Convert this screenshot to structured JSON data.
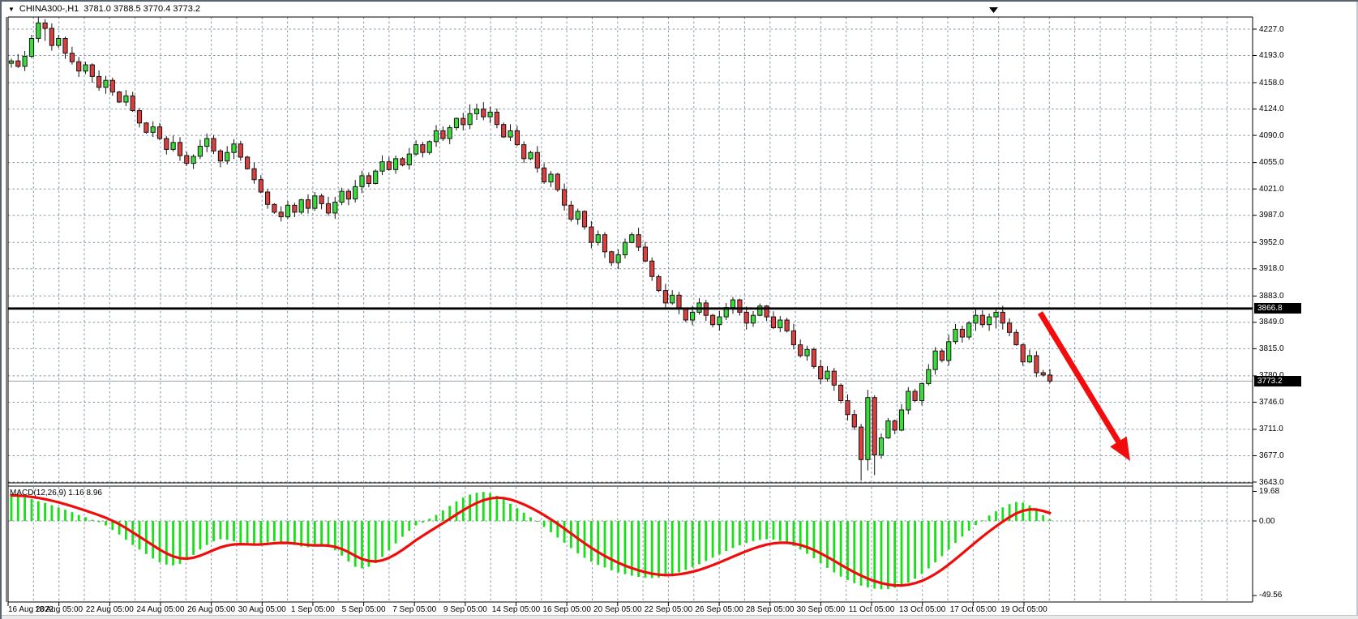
{
  "header": {
    "symbol_period": "CHINA300-,H1",
    "ohlc_readout": "3781.0 3788.5 3770.4 3773.2",
    "dropdown_glyph": "▼"
  },
  "colors": {
    "bull_fill": "#3bdb3b",
    "bear_fill": "#d94040",
    "candle_outline": "#141414",
    "grid": "#8294a8",
    "macd_hist": "#17e017",
    "macd_signal": "#f10c0c",
    "arrow": "#f20c0c",
    "tag_bg": "#000000",
    "tag_text": "#ffffff",
    "current_price_line": "#9aa0a6",
    "hline": "#000000"
  },
  "chart_data": {
    "type": "candlestick",
    "title": "CHINA300- H1 chart with MACD(12,26,9) and bearish arrow annotation",
    "symbol": "CHINA300-",
    "timeframe": "H1",
    "last_bar_ohlc": {
      "open": 3781.0,
      "high": 3788.5,
      "low": 3770.4,
      "close": 3773.2
    },
    "price_axis": {
      "min": 3643.0,
      "max": 4227.0,
      "tick_values": [
        4227.0,
        4193.0,
        4158.0,
        4124.0,
        4090.0,
        4055.0,
        4021.0,
        3987.0,
        3952.0,
        3918.0,
        3883.0,
        3849.0,
        3815.0,
        3780.0,
        3746.0,
        3711.0,
        3677.0,
        3643.0
      ],
      "tick_labels": [
        "4227.0",
        "4193.0",
        "4158.0",
        "4124.0",
        "4090.0",
        "4055.0",
        "4021.0",
        "3987.0",
        "3952.0",
        "3918.0",
        "3883.0",
        "3849.0",
        "3815.0",
        "3780.0",
        "3746.0",
        "3711.0",
        "3677.0",
        "3643.0"
      ]
    },
    "time_axis": {
      "labels": [
        "16 Aug 2022",
        "18 Aug 05:00",
        "22 Aug 05:00",
        "24 Aug 05:00",
        "26 Aug 05:00",
        "30 Aug 05:00",
        "1 Sep 05:00",
        "5 Sep 05:00",
        "7 Sep 05:00",
        "9 Sep 05:00",
        "14 Sep 05:00",
        "16 Sep 05:00",
        "20 Sep 05:00",
        "22 Sep 05:00",
        "26 Sep 05:00",
        "28 Sep 05:00",
        "30 Sep 05:00",
        "11 Oct 05:00",
        "13 Oct 05:00",
        "17 Oct 05:00",
        "19 Oct 05:00"
      ]
    },
    "grid": true,
    "legend_position": "none",
    "candles": {
      "open_first": 4183,
      "closes": [
        4186,
        4179,
        4192,
        4215,
        4235,
        4228,
        4206,
        4215,
        4196,
        4185,
        4173,
        4181,
        4166,
        4152,
        4161,
        4146,
        4133,
        4141,
        4122,
        4106,
        4094,
        4101,
        4086,
        4072,
        4081,
        4064,
        4054,
        4063,
        4076,
        4086,
        4070,
        4057,
        4068,
        4079,
        4062,
        4047,
        4033,
        4017,
        4001,
        3991,
        3985,
        4000,
        3991,
        4007,
        3996,
        4012,
        4002,
        3990,
        4004,
        4018,
        4008,
        4024,
        4038,
        4028,
        4044,
        4056,
        4046,
        4060,
        4052,
        4066,
        4078,
        4068,
        4082,
        4096,
        4086,
        4100,
        4112,
        4104,
        4118,
        4124,
        4114,
        4120,
        4104,
        4088,
        4096,
        4078,
        4060,
        4068,
        4048,
        4030,
        4040,
        4020,
        4000,
        3982,
        3992,
        3972,
        3952,
        3962,
        3940,
        3926,
        3936,
        3952,
        3962,
        3946,
        3928,
        3908,
        3890,
        3874,
        3884,
        3866,
        3852,
        3862,
        3874,
        3858,
        3846,
        3856,
        3868,
        3878,
        3862,
        3848,
        3858,
        3870,
        3856,
        3842,
        3852,
        3838,
        3820,
        3806,
        3814,
        3792,
        3776,
        3786,
        3768,
        3748,
        3730,
        3714,
        3672,
        3752,
        3678,
        3700,
        3722,
        3710,
        3736,
        3760,
        3748,
        3770,
        3788,
        3812,
        3800,
        3824,
        3840,
        3830,
        3848,
        3858,
        3846,
        3856,
        3862,
        3848,
        3836,
        3820,
        3798,
        3806,
        3784,
        3781,
        3773.2
      ],
      "wick_overrides": {
        "4": [
          4246,
          4210
        ],
        "5": [
          4240,
          4212
        ],
        "68": [
          4130,
          4098
        ],
        "69": [
          4131,
          4110
        ],
        "126": [
          3718,
          3645
        ],
        "127": [
          3762,
          3658
        ],
        "128": [
          3755,
          3652
        ],
        "143": [
          3866.5,
          3838
        ],
        "146": [
          3867.0,
          3841
        ],
        "154": [
          3788.5,
          3770.4
        ]
      }
    },
    "horizontal_line": {
      "price": 3866.8,
      "label": "3866.8"
    },
    "current_price": {
      "price": 3773.2,
      "label": "3773.2"
    },
    "indicator": {
      "name": "MACD",
      "params": "12,26,9",
      "label": "MACD(12,26,9) 1.16 8.96",
      "histogram_last": 1.16,
      "signal_last": 8.96,
      "axis_ticks": [
        {
          "value": 19.68,
          "label": "19.68"
        },
        {
          "value": 0.0,
          "label": "0.00"
        },
        {
          "value": -49.56,
          "label": "-49.56"
        }
      ],
      "histogram": [
        17,
        16.5,
        15.5,
        14.5,
        13.2,
        12,
        10.5,
        9,
        7.5,
        5.8,
        4,
        2.5,
        0.8,
        -0.8,
        -3,
        -6,
        -9,
        -12.5,
        -16,
        -19,
        -22,
        -25,
        -27.5,
        -29,
        -29.5,
        -28.5,
        -26,
        -22.5,
        -19,
        -16,
        -13.5,
        -12.2,
        -12.5,
        -13.5,
        -14.8,
        -15.8,
        -16.2,
        -15.5,
        -14.2,
        -13.4,
        -13.8,
        -14.8,
        -16,
        -17,
        -17.5,
        -17,
        -16,
        -17,
        -19.5,
        -23,
        -27,
        -30.5,
        -31.5,
        -30.5,
        -28,
        -24,
        -19.5,
        -15,
        -10.5,
        -6.5,
        -3,
        -1,
        1.5,
        4,
        7,
        10,
        13,
        15.5,
        17.5,
        18.8,
        19.3,
        18.5,
        16.8,
        14.5,
        11.5,
        8.5,
        5.5,
        2.5,
        -0.5,
        -4,
        -7.5,
        -11,
        -14.5,
        -18,
        -21.5,
        -24.5,
        -27,
        -29.2,
        -31,
        -32.8,
        -34.2,
        -35.4,
        -36.4,
        -37.2,
        -37.8,
        -38,
        -37.6,
        -36.8,
        -35.6,
        -34.2,
        -32.6,
        -30.8,
        -28.8,
        -26.6,
        -24.4,
        -22.2,
        -20,
        -18,
        -16.2,
        -14.6,
        -13.4,
        -12.6,
        -12.2,
        -12.4,
        -13.2,
        -14.6,
        -16.6,
        -19,
        -21.8,
        -24.8,
        -28,
        -31.2,
        -34.2,
        -37,
        -39.4,
        -41.4,
        -43,
        -44.2,
        -45,
        -45.4,
        -45.2,
        -44.4,
        -43,
        -41,
        -38.4,
        -35.2,
        -31.6,
        -27.6,
        -23.4,
        -19,
        -14.6,
        -10.4,
        -6.4,
        -2.8,
        0.4,
        3.6,
        6.4,
        9,
        11.2,
        12.6,
        12.2,
        10.4,
        7.2,
        3.8,
        1.16
      ]
    },
    "annotations": [
      {
        "type": "arrow",
        "direction": "down-right",
        "from": [
          1281,
          384
        ],
        "to": [
          1392,
          567
        ]
      }
    ]
  }
}
